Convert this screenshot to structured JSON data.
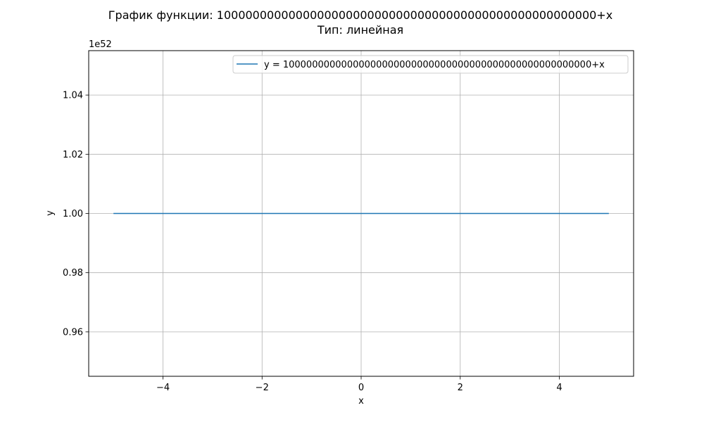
{
  "chart_data": {
    "type": "line",
    "title": "График функции: 10000000000000000000000000000000000000000000000000000+x",
    "subtitle": "Тип: линейная",
    "xlabel": "x",
    "ylabel": "y",
    "y_offset_label": "1e52",
    "xlim": [
      -5.5,
      5.5
    ],
    "ylim": [
      0.945,
      1.055
    ],
    "x_ticks": [
      -4,
      -2,
      0,
      2,
      4
    ],
    "x_tick_labels": [
      "−4",
      "−2",
      "0",
      "2",
      "4"
    ],
    "y_ticks": [
      0.96,
      0.98,
      1.0,
      1.02,
      1.04
    ],
    "y_tick_labels": [
      "0.96",
      "0.98",
      "1.00",
      "1.02",
      "1.04"
    ],
    "grid": true,
    "legend_position": "top-right",
    "series": [
      {
        "name": "y = 10000000000000000000000000000000000000000000000000000+x",
        "color": "#1f77b4",
        "x": [
          -5,
          5
        ],
        "y": [
          1.0,
          1.0
        ]
      }
    ]
  }
}
